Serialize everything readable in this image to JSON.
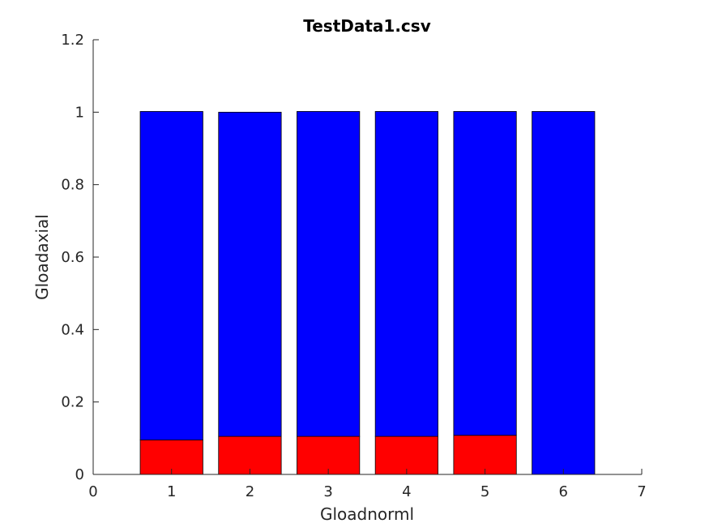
{
  "chart_data": {
    "type": "bar",
    "stacked": true,
    "title": "TestData1.csv",
    "xlabel": "Gloadnorml",
    "ylabel": "Gloadaxial",
    "categories": [
      1,
      2,
      3,
      4,
      5,
      6
    ],
    "xlim": [
      0,
      7
    ],
    "ylim": [
      0,
      1.2
    ],
    "xticks": [
      "0",
      "1",
      "2",
      "3",
      "4",
      "5",
      "6",
      "7"
    ],
    "yticks": [
      "0",
      "0.2",
      "0.4",
      "0.6",
      "0.8",
      "1",
      "1.2"
    ],
    "grid": false,
    "series": [
      {
        "color": "#ff0000",
        "values": [
          0.095,
          0.105,
          0.105,
          0.105,
          0.108,
          0.0
        ]
      },
      {
        "color": "#0000ff",
        "values": [
          0.907,
          0.895,
          0.897,
          0.897,
          0.894,
          1.002
        ]
      }
    ]
  }
}
